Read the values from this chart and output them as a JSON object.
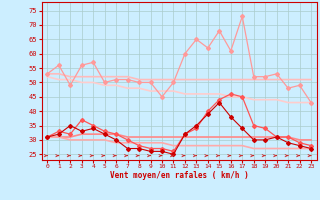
{
  "bg_color": "#cceeff",
  "grid_color": "#aacccc",
  "xlabel": "Vent moyen/en rafales ( km/h )",
  "xlim": [
    -0.5,
    23.5
  ],
  "ylim": [
    23,
    78
  ],
  "yticks": [
    25,
    30,
    35,
    40,
    45,
    50,
    55,
    60,
    65,
    70,
    75
  ],
  "xticks": [
    0,
    1,
    2,
    3,
    4,
    5,
    6,
    7,
    8,
    9,
    10,
    11,
    12,
    13,
    14,
    15,
    16,
    17,
    18,
    19,
    20,
    21,
    22,
    23
  ],
  "series": [
    {
      "name": "rafales_high",
      "y": [
        53,
        56,
        49,
        56,
        57,
        50,
        51,
        51,
        50,
        50,
        45,
        50,
        60,
        65,
        62,
        68,
        61,
        73,
        52,
        52,
        53,
        48,
        49,
        43
      ],
      "color": "#ff9999",
      "lw": 0.9,
      "marker": "D",
      "ms": 2.0
    },
    {
      "name": "trend_upper1",
      "y": [
        53,
        53,
        52,
        52,
        52,
        52,
        52,
        52,
        51,
        51,
        51,
        51,
        51,
        51,
        51,
        51,
        51,
        51,
        51,
        51,
        51,
        51,
        51,
        51
      ],
      "color": "#ffbbbb",
      "lw": 1.2,
      "marker": null,
      "ms": 0
    },
    {
      "name": "trend_upper2",
      "y": [
        52,
        51,
        51,
        50,
        50,
        49,
        49,
        48,
        48,
        47,
        47,
        47,
        46,
        46,
        46,
        46,
        45,
        45,
        44,
        44,
        44,
        43,
        43,
        43
      ],
      "color": "#ffcccc",
      "lw": 1.2,
      "marker": null,
      "ms": 0
    },
    {
      "name": "vent_moyen",
      "y": [
        31,
        33,
        32,
        37,
        35,
        33,
        32,
        30,
        28,
        27,
        27,
        26,
        32,
        34,
        40,
        44,
        46,
        45,
        35,
        34,
        31,
        31,
        29,
        28
      ],
      "color": "#ff5555",
      "lw": 0.9,
      "marker": "D",
      "ms": 2.0
    },
    {
      "name": "trend_lower1",
      "y": [
        31,
        31,
        31,
        32,
        32,
        32,
        32,
        31,
        31,
        31,
        31,
        31,
        31,
        31,
        31,
        31,
        31,
        31,
        31,
        31,
        31,
        31,
        30,
        30
      ],
      "color": "#ff8888",
      "lw": 1.2,
      "marker": null,
      "ms": 0
    },
    {
      "name": "trend_lower2",
      "y": [
        31,
        31,
        30,
        30,
        30,
        30,
        29,
        29,
        29,
        29,
        29,
        28,
        28,
        28,
        28,
        28,
        28,
        28,
        27,
        27,
        27,
        27,
        27,
        27
      ],
      "color": "#ffaaaa",
      "lw": 1.2,
      "marker": null,
      "ms": 0
    },
    {
      "name": "vent_min",
      "y": [
        31,
        32,
        35,
        33,
        34,
        32,
        30,
        27,
        27,
        26,
        26,
        25,
        32,
        35,
        39,
        43,
        38,
        34,
        30,
        30,
        31,
        29,
        28,
        27
      ],
      "color": "#cc0000",
      "lw": 0.8,
      "marker": "D",
      "ms": 2.0
    }
  ],
  "arrow_color": "#cc2222",
  "arrow_size": 4
}
